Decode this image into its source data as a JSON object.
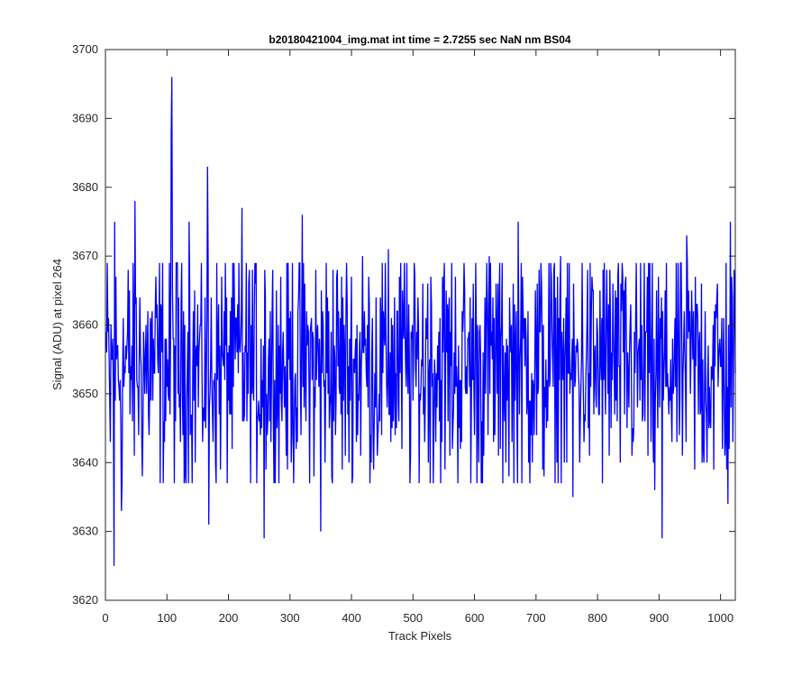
{
  "chart_data": {
    "type": "line",
    "title": "b20180421004_img.mat int time = 2.7255 sec  NaN nm BS04",
    "xlabel": "Track Pixels",
    "ylabel": "Signal (ADU) at pixel 264",
    "xlim": [
      0,
      1024
    ],
    "ylim": [
      3620,
      3700
    ],
    "xticks": [
      0,
      100,
      200,
      300,
      400,
      500,
      600,
      700,
      800,
      900,
      1000
    ],
    "yticks": [
      3620,
      3630,
      3640,
      3650,
      3660,
      3670,
      3680,
      3690,
      3700
    ],
    "grid": false,
    "series": [
      {
        "color": "#0000ff",
        "x": [
          1,
          8,
          14,
          15,
          26,
          48,
          107,
          108,
          136,
          166,
          168,
          222,
          258,
          259,
          320,
          350,
          351,
          418,
          460,
          524,
          624,
          671,
          740,
          760,
          820,
          893,
          905,
          945,
          1012,
          1016,
          1024
        ],
        "y": [
          3659,
          3643,
          3625,
          3675,
          3633,
          3678,
          3688,
          3696,
          3675,
          3683,
          3631,
          3677,
          3629,
          3668,
          3676,
          3630,
          3665,
          3670,
          3671,
          3666,
          3670,
          3675,
          3670,
          3635,
          3668,
          3636,
          3629,
          3673,
          3634,
          3675,
          3653
        ],
        "noise": {
          "center": 3654,
          "typical_low": 3643,
          "typical_high": 3663
        }
      }
    ]
  }
}
